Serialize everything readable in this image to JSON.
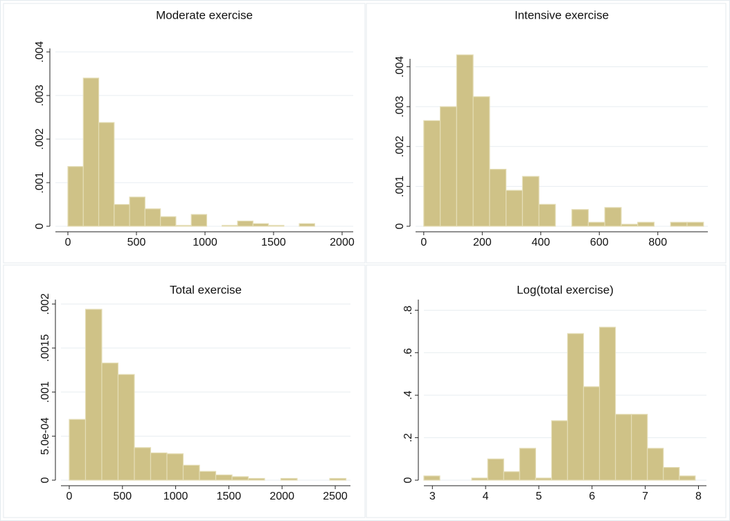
{
  "chart_data": [
    {
      "type": "histogram",
      "title": "Moderate exercise",
      "color": "#cfc287",
      "grid": true,
      "bins": [
        0,
        112.5,
        225,
        337.5,
        450,
        562.5,
        675,
        787.5,
        900,
        1012.5,
        1125,
        1237.5,
        1350,
        1462.5,
        1575,
        1687.5,
        1800
      ],
      "values": [
        0.00137,
        0.0034,
        0.00238,
        0.0005,
        0.00067,
        0.0004,
        0.00022,
        2e-05,
        0.00027,
        0,
        2e-05,
        0.00012,
        6e-05,
        2e-05,
        0,
        6e-05
      ],
      "xlim": [
        -91,
        2081
      ],
      "ylim": [
        0,
        0.00408
      ],
      "xticks": [
        0,
        500,
        1000,
        1500,
        2000
      ],
      "yticks": [
        0,
        {
          "value": 0.001,
          "label": ".001"
        },
        {
          "value": 0.002,
          "label": ".002"
        },
        {
          "value": 0.003,
          "label": ".003"
        },
        {
          "value": 0.004,
          "label": ".004"
        }
      ]
    },
    {
      "type": "histogram",
      "title": "Intensive exercise",
      "color": "#cfc287",
      "grid": true,
      "bins": [
        0,
        56.25,
        112.5,
        168.75,
        225,
        281.25,
        337.5,
        393.75,
        450,
        506.25,
        562.5,
        618.75,
        675,
        731.25,
        787.5,
        843.75,
        900,
        956.25
      ],
      "values": [
        0.00265,
        0.003,
        0.0043,
        0.00325,
        0.00143,
        0.0009,
        0.00125,
        0.00055,
        0,
        0.00042,
        0.0001,
        0.00047,
        5e-05,
        0.0001,
        0,
        0.0001,
        0.0001
      ],
      "xlim": [
        -28,
        971
      ],
      "ylim": [
        0,
        0.0042
      ],
      "xticks": [
        0,
        200,
        400,
        600,
        800
      ],
      "yticks": [
        0,
        {
          "value": 0.001,
          "label": ".001"
        },
        {
          "value": 0.002,
          "label": ".002"
        },
        {
          "value": 0.003,
          "label": ".003"
        },
        {
          "value": 0.004,
          "label": ".004"
        }
      ]
    },
    {
      "type": "histogram",
      "title": "Total exercise",
      "color": "#cfc287",
      "grid": true,
      "bins": [
        0,
        153,
        306,
        459,
        612,
        765,
        918,
        1071,
        1224,
        1377,
        1530,
        1683,
        1836,
        1989,
        2142,
        2295,
        2448,
        2601
      ],
      "values": [
        0.00069,
        0.00194,
        0.00133,
        0.0012,
        0.00037,
        0.00031,
        0.0003,
        0.00017,
        0.0001,
        6e-05,
        4e-05,
        2e-05,
        0,
        2e-05,
        0,
        0,
        2e-05
      ],
      "xlim": [
        -78,
        2643
      ],
      "ylim": [
        0,
        0.00205
      ],
      "xticks": [
        0,
        500,
        1000,
        1500,
        2000,
        2500
      ],
      "yticks": [
        0,
        {
          "value": 0.0005,
          "label": "5.0e-04"
        },
        {
          "value": 0.001,
          "label": ".001"
        },
        {
          "value": 0.0015,
          "label": ".0015"
        },
        {
          "value": 0.002,
          "label": ".002"
        }
      ]
    },
    {
      "type": "histogram",
      "title": "Log(total exercise)",
      "color": "#cfc287",
      "grid": true,
      "bins": [
        2.84,
        3.14,
        3.44,
        3.74,
        4.04,
        4.34,
        4.64,
        4.94,
        5.24,
        5.54,
        5.84,
        6.14,
        6.44,
        6.74,
        7.04,
        7.34,
        7.64,
        7.94
      ],
      "values": [
        0.02,
        0,
        0,
        0.01,
        0.1,
        0.04,
        0.15,
        0.01,
        0.28,
        0.69,
        0.44,
        0.72,
        0.31,
        0.31,
        0.15,
        0.06,
        0.02
      ],
      "xlim": [
        2.84,
        8.15
      ],
      "ylim": [
        0,
        0.85
      ],
      "xticks": [
        3,
        4,
        5,
        6,
        7,
        8
      ],
      "yticks": [
        0,
        {
          "value": 0.2,
          "label": ".2"
        },
        {
          "value": 0.4,
          "label": ".4"
        },
        {
          "value": 0.6,
          "label": ".6"
        },
        {
          "value": 0.8,
          "label": ".8"
        }
      ]
    }
  ]
}
